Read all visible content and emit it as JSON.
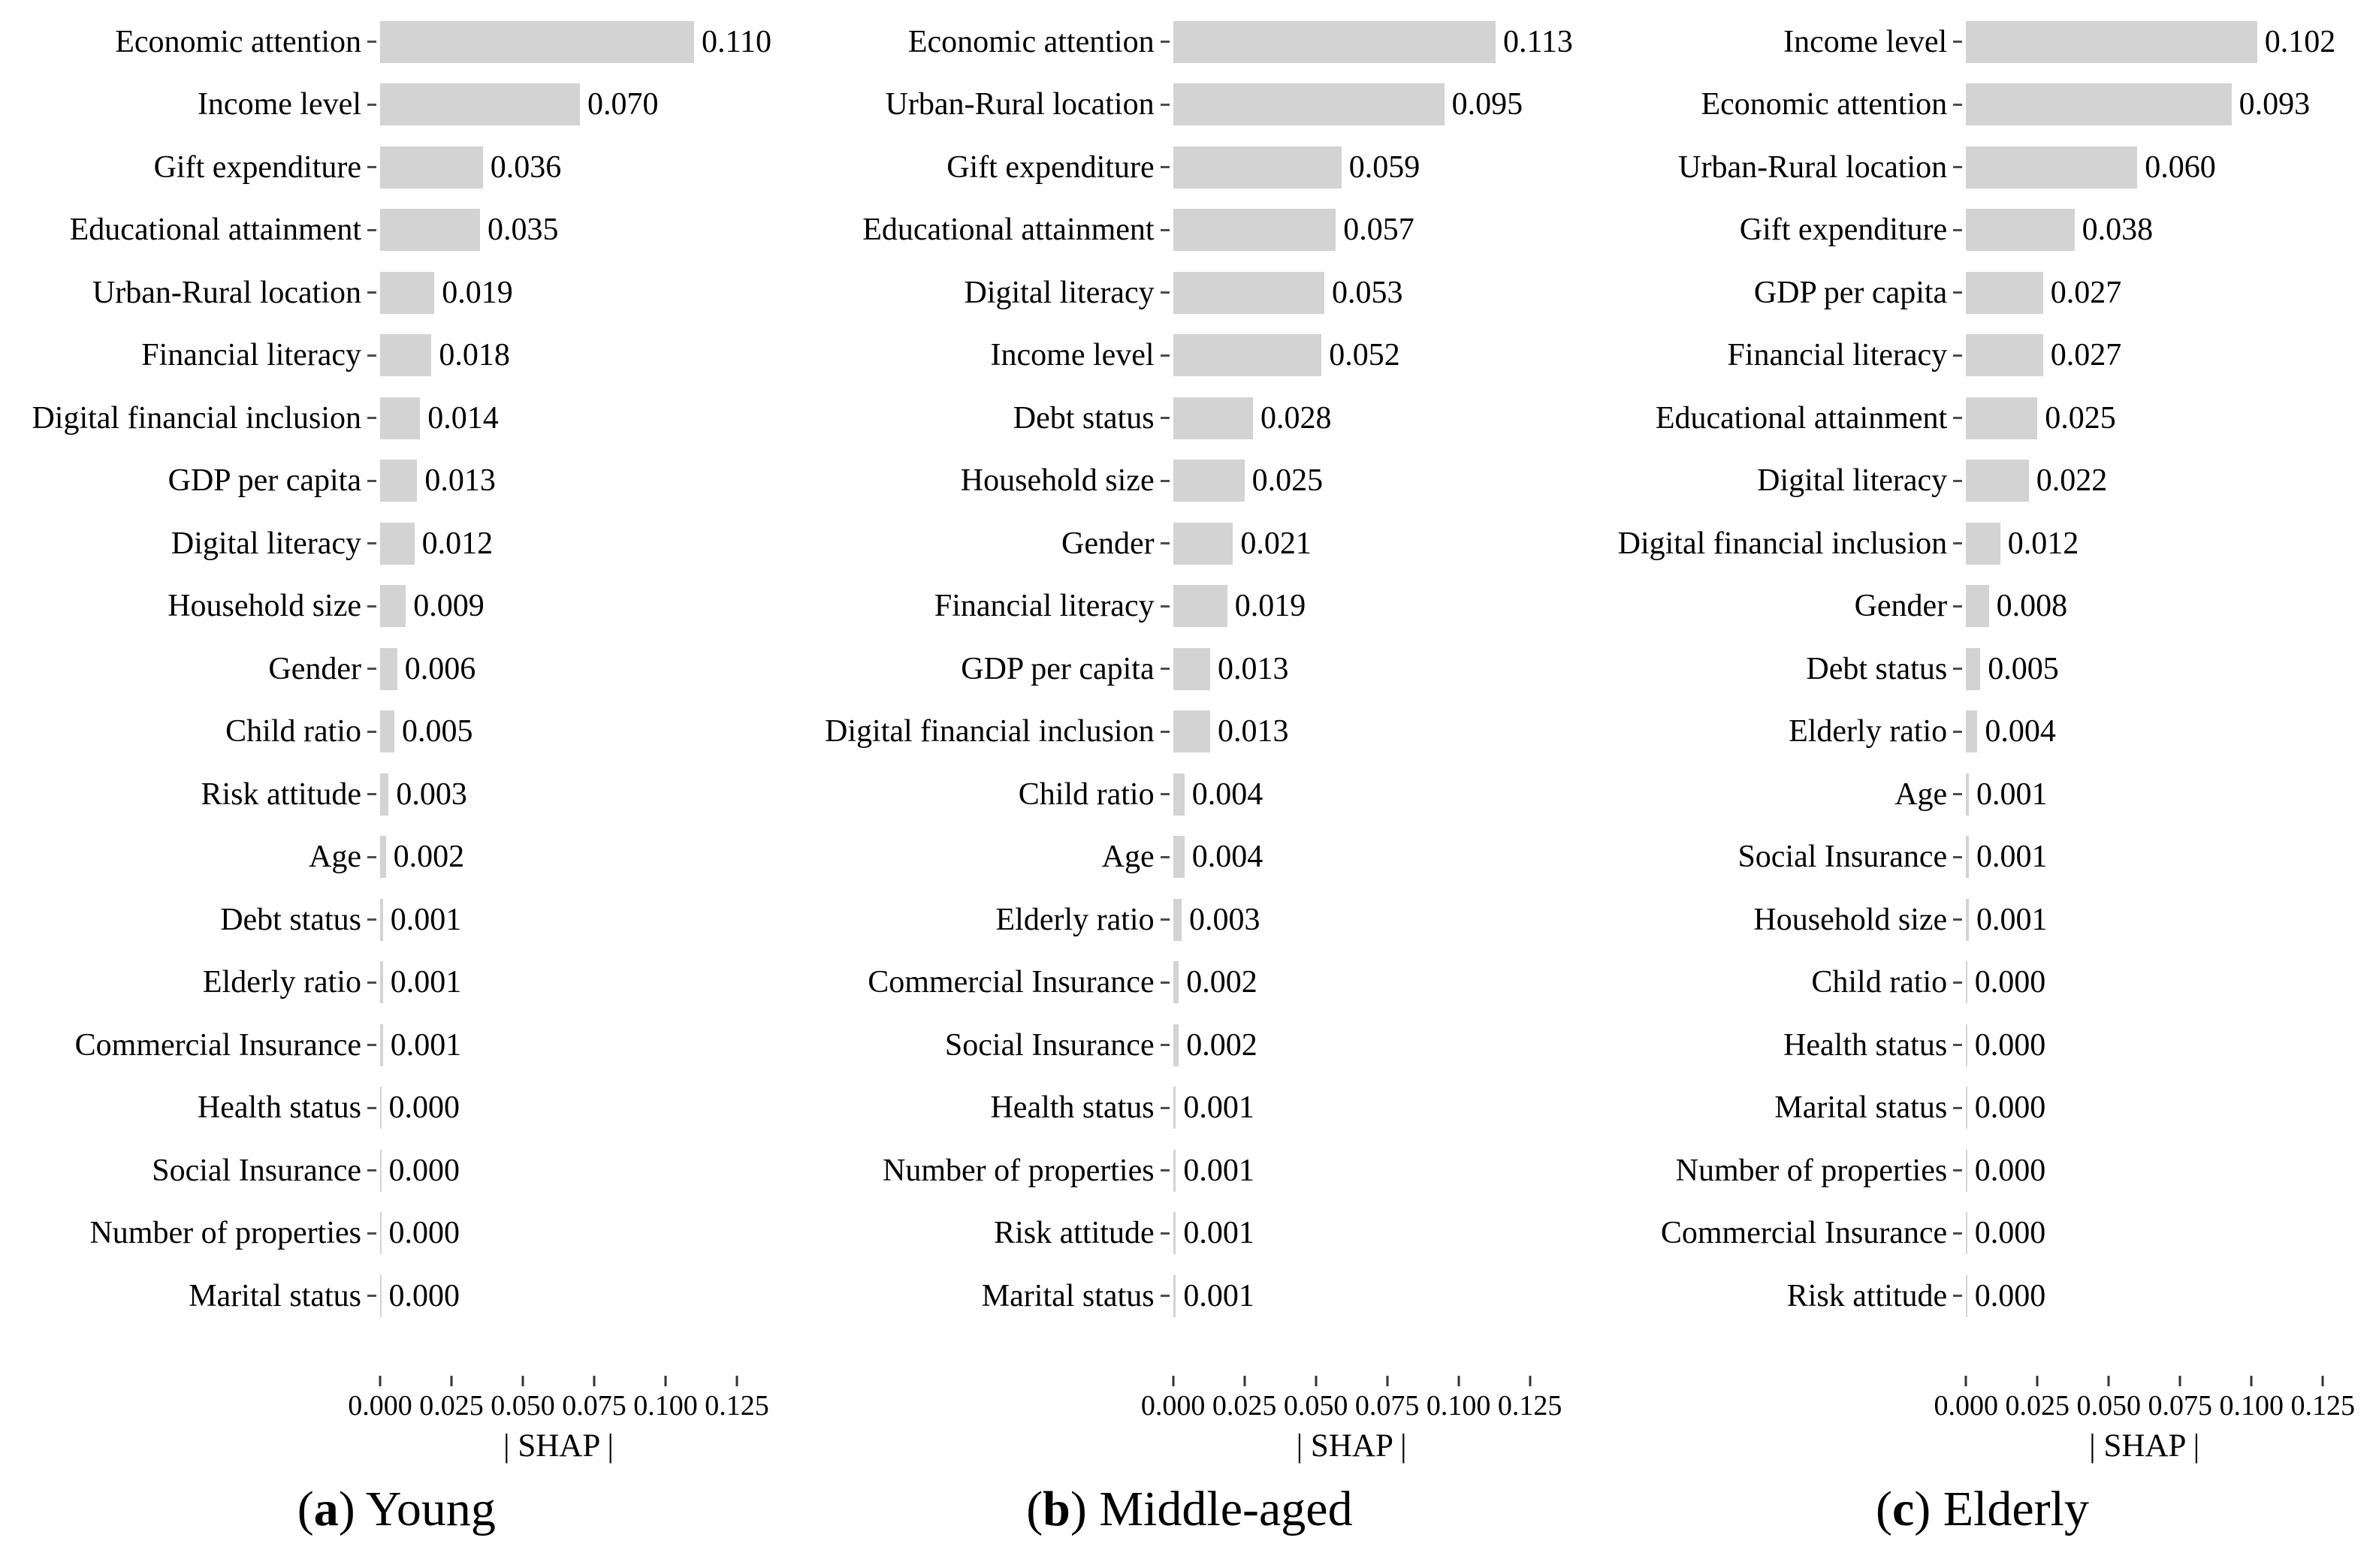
{
  "figure": {
    "background": "#ffffff",
    "bar_color": "#d3d3d3",
    "tick_color": "#333333",
    "axis": {
      "ticks": [
        "0.000",
        "0.025",
        "0.050",
        "0.075",
        "0.100",
        "0.125"
      ],
      "max": 0.125,
      "label": "| SHAP |"
    },
    "panels": [
      {
        "caption": {
          "letter": "a",
          "label": "Young"
        },
        "rows": [
          {
            "label": "Economic attention",
            "value": "0.110"
          },
          {
            "label": "Income level",
            "value": "0.070"
          },
          {
            "label": "Gift expenditure",
            "value": "0.036"
          },
          {
            "label": "Educational attainment",
            "value": "0.035"
          },
          {
            "label": "Urban-Rural location",
            "value": "0.019"
          },
          {
            "label": "Financial literacy",
            "value": "0.018"
          },
          {
            "label": "Digital financial inclusion",
            "value": "0.014"
          },
          {
            "label": "GDP per capita",
            "value": "0.013"
          },
          {
            "label": "Digital literacy",
            "value": "0.012"
          },
          {
            "label": "Household size",
            "value": "0.009"
          },
          {
            "label": "Gender",
            "value": "0.006"
          },
          {
            "label": "Child ratio",
            "value": "0.005"
          },
          {
            "label": "Risk attitude",
            "value": "0.003"
          },
          {
            "label": "Age",
            "value": "0.002"
          },
          {
            "label": "Debt status",
            "value": "0.001"
          },
          {
            "label": "Elderly ratio",
            "value": "0.001"
          },
          {
            "label": "Commercial Insurance",
            "value": "0.001"
          },
          {
            "label": "Health status",
            "value": "0.000"
          },
          {
            "label": "Social Insurance",
            "value": "0.000"
          },
          {
            "label": "Number of properties",
            "value": "0.000"
          },
          {
            "label": "Marital status",
            "value": "0.000"
          }
        ]
      },
      {
        "caption": {
          "letter": "b",
          "label": "Middle-aged"
        },
        "rows": [
          {
            "label": "Economic attention",
            "value": "0.113"
          },
          {
            "label": "Urban-Rural location",
            "value": "0.095"
          },
          {
            "label": "Gift expenditure",
            "value": "0.059"
          },
          {
            "label": "Educational attainment",
            "value": "0.057"
          },
          {
            "label": "Digital literacy",
            "value": "0.053"
          },
          {
            "label": "Income level",
            "value": "0.052"
          },
          {
            "label": "Debt status",
            "value": "0.028"
          },
          {
            "label": "Household size",
            "value": "0.025"
          },
          {
            "label": "Gender",
            "value": "0.021"
          },
          {
            "label": "Financial literacy",
            "value": "0.019"
          },
          {
            "label": "GDP per capita",
            "value": "0.013"
          },
          {
            "label": "Digital financial inclusion",
            "value": "0.013"
          },
          {
            "label": "Child ratio",
            "value": "0.004"
          },
          {
            "label": "Age",
            "value": "0.004"
          },
          {
            "label": "Elderly ratio",
            "value": "0.003"
          },
          {
            "label": "Commercial Insurance",
            "value": "0.002"
          },
          {
            "label": "Social Insurance",
            "value": "0.002"
          },
          {
            "label": "Health status",
            "value": "0.001"
          },
          {
            "label": "Number of properties",
            "value": "0.001"
          },
          {
            "label": "Risk attitude",
            "value": "0.001"
          },
          {
            "label": "Marital status",
            "value": "0.001"
          }
        ]
      },
      {
        "caption": {
          "letter": "c",
          "label": "Elderly"
        },
        "rows": [
          {
            "label": "Income level",
            "value": "0.102"
          },
          {
            "label": "Economic attention",
            "value": "0.093"
          },
          {
            "label": "Urban-Rural location",
            "value": "0.060"
          },
          {
            "label": "Gift expenditure",
            "value": "0.038"
          },
          {
            "label": "GDP per capita",
            "value": "0.027"
          },
          {
            "label": "Financial literacy",
            "value": "0.027"
          },
          {
            "label": "Educational attainment",
            "value": "0.025"
          },
          {
            "label": "Digital literacy",
            "value": "0.022"
          },
          {
            "label": "Digital financial inclusion",
            "value": "0.012"
          },
          {
            "label": "Gender",
            "value": "0.008"
          },
          {
            "label": "Debt status",
            "value": "0.005"
          },
          {
            "label": "Elderly ratio",
            "value": "0.004"
          },
          {
            "label": "Age",
            "value": "0.001"
          },
          {
            "label": "Social Insurance",
            "value": "0.001"
          },
          {
            "label": "Household size",
            "value": "0.001"
          },
          {
            "label": "Child ratio",
            "value": "0.000"
          },
          {
            "label": "Health status",
            "value": "0.000"
          },
          {
            "label": "Marital status",
            "value": "0.000"
          },
          {
            "label": "Number of properties",
            "value": "0.000"
          },
          {
            "label": "Commercial Insurance",
            "value": "0.000"
          },
          {
            "label": "Risk attitude",
            "value": "0.000"
          }
        ]
      }
    ]
  },
  "chart_data": [
    {
      "type": "bar",
      "orientation": "horizontal",
      "title": "(a) Young",
      "categories": [
        "Economic attention",
        "Income level",
        "Gift expenditure",
        "Educational attainment",
        "Urban-Rural location",
        "Financial literacy",
        "Digital financial inclusion",
        "GDP per capita",
        "Digital literacy",
        "Household size",
        "Gender",
        "Child ratio",
        "Risk attitude",
        "Age",
        "Debt status",
        "Elderly ratio",
        "Commercial Insurance",
        "Health status",
        "Social Insurance",
        "Number of properties",
        "Marital status"
      ],
      "values": [
        0.11,
        0.07,
        0.036,
        0.035,
        0.019,
        0.018,
        0.014,
        0.013,
        0.012,
        0.009,
        0.006,
        0.005,
        0.003,
        0.002,
        0.001,
        0.001,
        0.001,
        0.0,
        0.0,
        0.0,
        0.0
      ],
      "xlabel": "| SHAP |",
      "ylabel": "",
      "xlim": [
        0,
        0.125
      ],
      "xticks": [
        0.0,
        0.025,
        0.05,
        0.075,
        0.1,
        0.125
      ],
      "grid": false,
      "legend": false,
      "bar_color": "#d3d3d3",
      "value_labels": true
    },
    {
      "type": "bar",
      "orientation": "horizontal",
      "title": "(b) Middle-aged",
      "categories": [
        "Economic attention",
        "Urban-Rural location",
        "Gift expenditure",
        "Educational attainment",
        "Digital literacy",
        "Income level",
        "Debt status",
        "Household size",
        "Gender",
        "Financial literacy",
        "GDP per capita",
        "Digital financial inclusion",
        "Child ratio",
        "Age",
        "Elderly ratio",
        "Commercial Insurance",
        "Social Insurance",
        "Health status",
        "Number of properties",
        "Risk attitude",
        "Marital status"
      ],
      "values": [
        0.113,
        0.095,
        0.059,
        0.057,
        0.053,
        0.052,
        0.028,
        0.025,
        0.021,
        0.019,
        0.013,
        0.013,
        0.004,
        0.004,
        0.003,
        0.002,
        0.002,
        0.001,
        0.001,
        0.001,
        0.001
      ],
      "xlabel": "| SHAP |",
      "ylabel": "",
      "xlim": [
        0,
        0.125
      ],
      "xticks": [
        0.0,
        0.025,
        0.05,
        0.075,
        0.1,
        0.125
      ],
      "grid": false,
      "legend": false,
      "bar_color": "#d3d3d3",
      "value_labels": true
    },
    {
      "type": "bar",
      "orientation": "horizontal",
      "title": "(c) Elderly",
      "categories": [
        "Income level",
        "Economic attention",
        "Urban-Rural location",
        "Gift expenditure",
        "GDP per capita",
        "Financial literacy",
        "Educational attainment",
        "Digital literacy",
        "Digital financial inclusion",
        "Gender",
        "Debt status",
        "Elderly ratio",
        "Age",
        "Social Insurance",
        "Household size",
        "Child ratio",
        "Health status",
        "Marital status",
        "Number of properties",
        "Commercial Insurance",
        "Risk attitude"
      ],
      "values": [
        0.102,
        0.093,
        0.06,
        0.038,
        0.027,
        0.027,
        0.025,
        0.022,
        0.012,
        0.008,
        0.005,
        0.004,
        0.001,
        0.001,
        0.001,
        0.0,
        0.0,
        0.0,
        0.0,
        0.0,
        0.0
      ],
      "xlabel": "| SHAP |",
      "ylabel": "",
      "xlim": [
        0,
        0.125
      ],
      "xticks": [
        0.0,
        0.025,
        0.05,
        0.075,
        0.1,
        0.125
      ],
      "grid": false,
      "legend": false,
      "bar_color": "#d3d3d3",
      "value_labels": true
    }
  ]
}
